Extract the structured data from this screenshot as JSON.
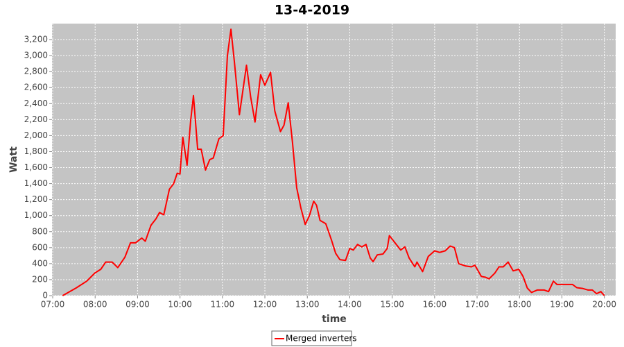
{
  "chart_data": {
    "type": "line",
    "title": "13-4-2019",
    "x_label": "time",
    "y_label": "Watt",
    "x": [
      "07:14",
      "07:33",
      "07:48",
      "08:00",
      "08:08",
      "08:15",
      "08:24",
      "08:32",
      "08:42",
      "08:50",
      "08:57",
      "09:06",
      "09:11",
      "09:19",
      "09:26",
      "09:31",
      "09:37",
      "09:45",
      "09:51",
      "09:56",
      "10:00",
      "10:04",
      "10:10",
      "10:15",
      "10:19",
      "10:25",
      "10:30",
      "10:36",
      "10:42",
      "10:47",
      "10:55",
      "11:01",
      "11:07",
      "11:12",
      "11:17",
      "11:24",
      "11:29",
      "11:34",
      "11:40",
      "11:46",
      "11:54",
      "12:00",
      "12:08",
      "12:14",
      "12:22",
      "12:27",
      "12:33",
      "12:39",
      "12:45",
      "12:51",
      "12:57",
      "13:03",
      "13:09",
      "13:13",
      "13:18",
      "13:26",
      "13:34",
      "13:40",
      "13:46",
      "13:54",
      "14:00",
      "14:05",
      "14:11",
      "14:17",
      "14:23",
      "14:29",
      "14:33",
      "14:39",
      "14:47",
      "14:53",
      "14:56",
      "15:04",
      "15:12",
      "15:18",
      "15:24",
      "15:32",
      "15:35",
      "15:43",
      "15:51",
      "16:00",
      "16:07",
      "16:15",
      "16:22",
      "16:28",
      "16:34",
      "16:44",
      "16:52",
      "16:57",
      "17:06",
      "17:12",
      "17:17",
      "17:25",
      "17:31",
      "17:37",
      "17:44",
      "17:51",
      "17:59",
      "18:05",
      "18:11",
      "18:17",
      "18:25",
      "18:35",
      "18:41",
      "18:48",
      "18:53",
      "19:00",
      "19:10",
      "19:15",
      "19:21",
      "19:29",
      "19:37",
      "19:43",
      "19:49",
      "19:55",
      "20:00"
    ],
    "series": [
      {
        "name": "Merged inverters",
        "color": "#ff0000",
        "values": [
          0,
          95,
          180,
          285,
          330,
          420,
          420,
          350,
          480,
          660,
          660,
          720,
          680,
          880,
          960,
          1040,
          1010,
          1330,
          1400,
          1530,
          1520,
          1980,
          1630,
          2180,
          2500,
          1830,
          1830,
          1570,
          1700,
          1720,
          1960,
          2000,
          3000,
          3330,
          2910,
          2260,
          2570,
          2880,
          2480,
          2170,
          2760,
          2630,
          2790,
          2310,
          2050,
          2130,
          2410,
          1920,
          1350,
          1090,
          890,
          1000,
          1180,
          1130,
          940,
          900,
          700,
          530,
          450,
          440,
          590,
          570,
          640,
          610,
          640,
          470,
          425,
          510,
          520,
          590,
          750,
          660,
          570,
          610,
          470,
          360,
          420,
          300,
          490,
          560,
          540,
          560,
          620,
          600,
          400,
          370,
          360,
          380,
          240,
          230,
          210,
          280,
          360,
          360,
          420,
          310,
          330,
          240,
          95,
          40,
          70,
          70,
          50,
          180,
          140,
          140,
          140,
          140,
          100,
          90,
          70,
          70,
          25,
          50,
          0
        ]
      }
    ],
    "xlim": [
      "06:59",
      "20:16"
    ],
    "xticks": [
      "07:00",
      "08:00",
      "09:00",
      "10:00",
      "11:00",
      "12:00",
      "13:00",
      "14:00",
      "15:00",
      "16:00",
      "17:00",
      "18:00",
      "19:00",
      "20:00"
    ],
    "ylim": [
      0,
      3400
    ],
    "yticks": [
      0,
      200,
      400,
      600,
      800,
      {
        "value": 1000,
        "label": "1,000"
      },
      {
        "value": 1200,
        "label": "1,200"
      },
      {
        "value": 1400,
        "label": "1,400"
      },
      {
        "value": 1600,
        "label": "1,600"
      },
      {
        "value": 1800,
        "label": "1,800"
      },
      {
        "value": 2000,
        "label": "2,000"
      },
      {
        "value": 2200,
        "label": "2,200"
      },
      {
        "value": 2400,
        "label": "2,400"
      },
      {
        "value": 2600,
        "label": "2,600"
      },
      {
        "value": 2800,
        "label": "2,800"
      },
      {
        "value": 3000,
        "label": "3,000"
      },
      {
        "value": 3200,
        "label": "3,200"
      }
    ],
    "grid": true,
    "legend": "bottom"
  }
}
